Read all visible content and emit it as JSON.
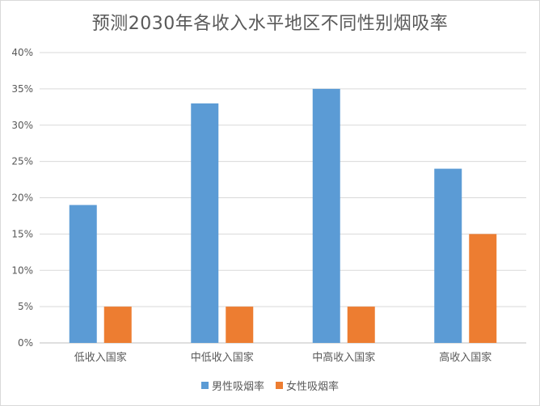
{
  "chart_data": {
    "type": "bar",
    "title": "预测2030年各收入水平地区不同性别烟吸率",
    "categories": [
      "低收入国家",
      "中低收入国家",
      "中高收入国家",
      "高收入国家"
    ],
    "series": [
      {
        "name": "男性吸烟率",
        "values": [
          0.19,
          0.33,
          0.35,
          0.24
        ],
        "color": "#5B9BD5"
      },
      {
        "name": "女性吸烟率",
        "values": [
          0.05,
          0.05,
          0.05,
          0.15
        ],
        "color": "#ED7D31"
      }
    ],
    "ylim": [
      0,
      0.4
    ],
    "yticks": [
      "0%",
      "5%",
      "10%",
      "15%",
      "20%",
      "25%",
      "30%",
      "35%",
      "40%"
    ],
    "grid": true,
    "legend_position": "bottom",
    "axis_text_color": "#595959",
    "grid_color": "#d9d9d9"
  }
}
